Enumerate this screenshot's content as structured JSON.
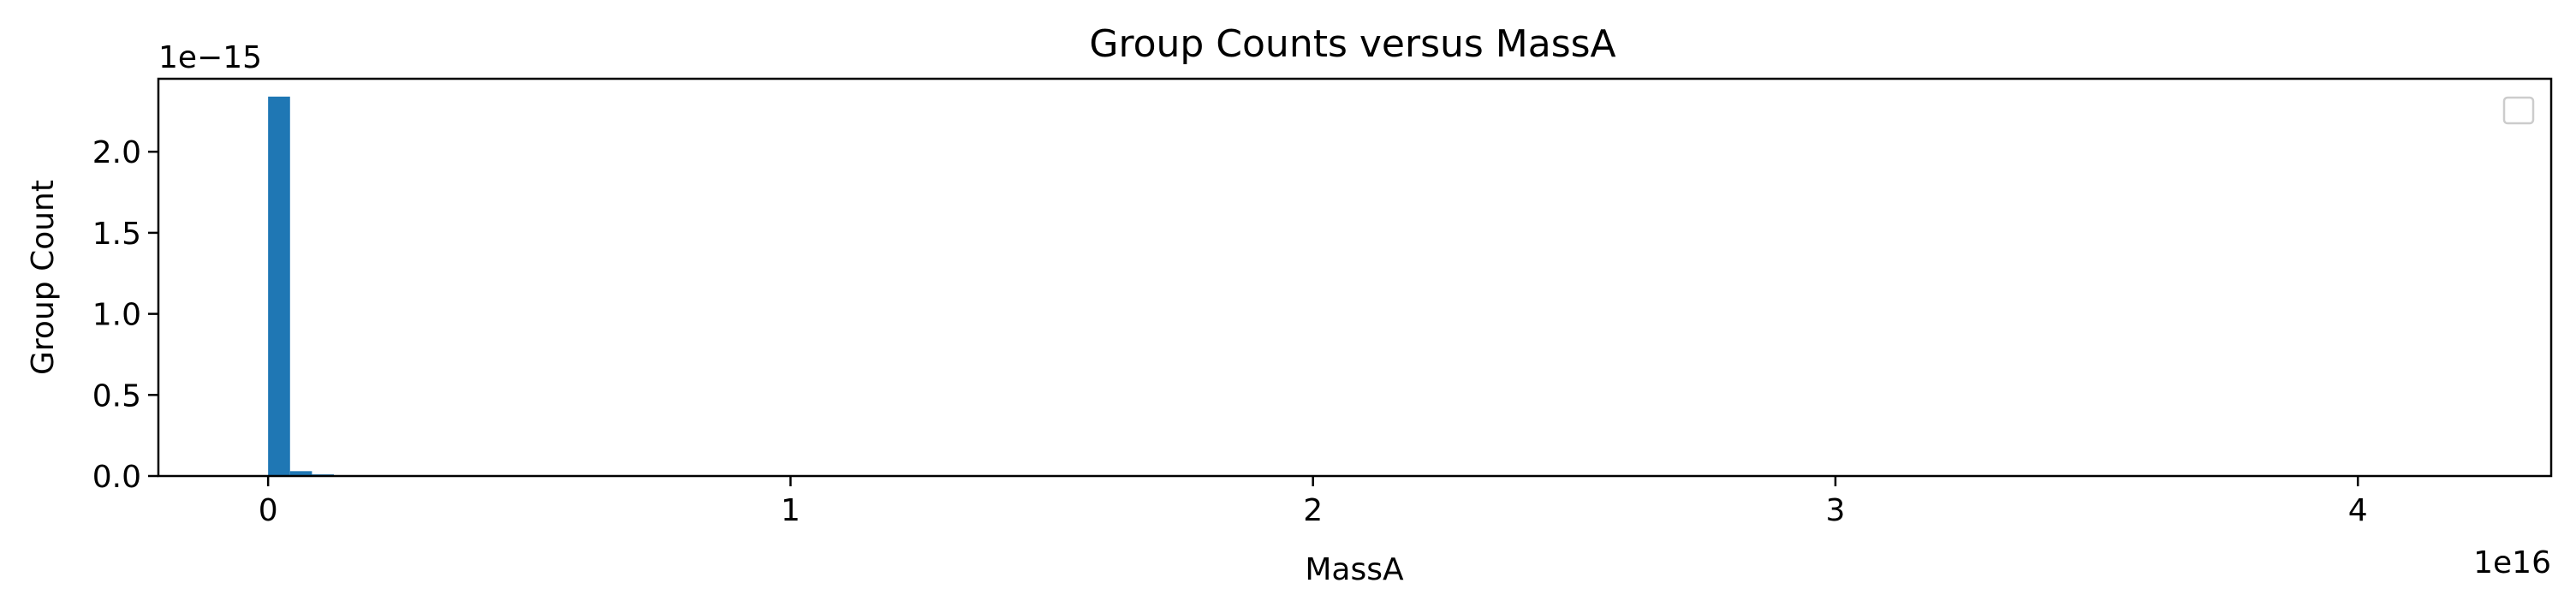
{
  "chart_data": {
    "type": "bar",
    "title": "Group Counts versus MassA",
    "xlabel": "MassA",
    "ylabel": "Group Count",
    "x_offset_label": "1e16",
    "y_offset_label": "1e−15",
    "xlim": [
      -2100000000000000.0,
      4.37e+16
    ],
    "ylim": [
      0,
      2.45e-15
    ],
    "x_ticks": [
      {
        "value": 0,
        "label": "0"
      },
      {
        "value": 1e+16,
        "label": "1"
      },
      {
        "value": 2e+16,
        "label": "2"
      },
      {
        "value": 3e+16,
        "label": "3"
      },
      {
        "value": 4e+16,
        "label": "4"
      }
    ],
    "y_ticks": [
      {
        "value": 0,
        "label": "0.0"
      },
      {
        "value": 5e-16,
        "label": "0.5"
      },
      {
        "value": 1e-15,
        "label": "1.0"
      },
      {
        "value": 1.5e-15,
        "label": "1.5"
      },
      {
        "value": 2e-15,
        "label": "2.0"
      }
    ],
    "bin_width": 420000000000000.0,
    "bins": [
      {
        "x": 0,
        "value": 2.34e-15
      },
      {
        "x": 420000000000000.0,
        "value": 3e-17
      },
      {
        "x": 840000000000000.0,
        "value": 1e-17
      },
      {
        "x": 1260000000000000.0,
        "value": 4e-18
      },
      {
        "x": 1680000000000000.0,
        "value": 2e-18
      }
    ],
    "bar_color": "#1f77b4",
    "grid": false,
    "legend_position": "top-right"
  }
}
